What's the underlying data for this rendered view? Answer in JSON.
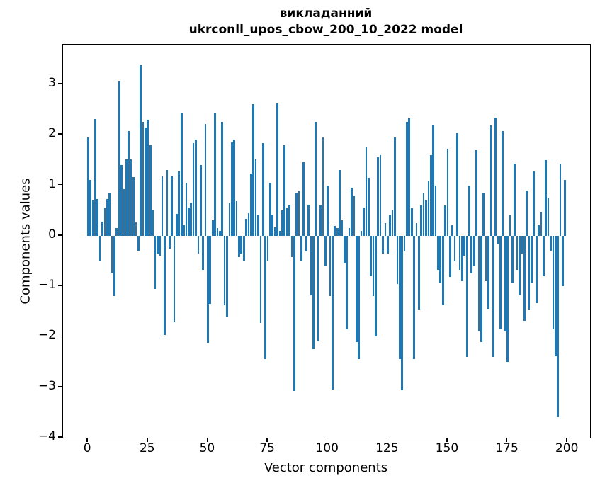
{
  "title_line1": "викладанний",
  "title_line2": "ukrconll_upos_cbow_200_10_2022 model",
  "chart_data": {
    "type": "bar",
    "title": "викладанний\nukrconll_upos_cbow_200_10_2022 model",
    "xlabel": "Vector components",
    "ylabel": "Components values",
    "n_components": 200,
    "x_start_index": 0,
    "bar_color": "#1f77b4",
    "grid": false,
    "legend": null,
    "xlim": [
      -10.4,
      209.4
    ],
    "ylim": [
      -4.0,
      3.785
    ],
    "xticks": [
      0,
      25,
      50,
      75,
      100,
      125,
      150,
      175,
      200
    ],
    "yticks": [
      -4,
      -3,
      -2,
      -1,
      0,
      1,
      2,
      3
    ],
    "values": [
      1.95,
      1.1,
      0.7,
      2.31,
      0.73,
      -0.5,
      0.28,
      0.56,
      0.73,
      0.86,
      -0.75,
      -1.2,
      0.15,
      3.05,
      1.4,
      0.93,
      1.51,
      2.08,
      1.51,
      1.16,
      0.26,
      -0.3,
      3.38,
      2.25,
      2.14,
      2.3,
      1.79,
      0.51,
      -1.06,
      -0.35,
      -0.4,
      1.17,
      -1.96,
      1.3,
      -0.25,
      1.17,
      -1.72,
      0.43,
      1.27,
      2.42,
      0.21,
      1.05,
      0.56,
      0.65,
      1.84,
      1.9,
      -0.35,
      1.4,
      -0.68,
      2.21,
      -2.12,
      -1.35,
      0.3,
      2.42,
      0.15,
      0.1,
      2.26,
      -1.38,
      -1.62,
      0.65,
      1.85,
      1.9,
      0.68,
      -0.43,
      -0.35,
      -0.5,
      0.33,
      0.44,
      1.23,
      2.6,
      1.51,
      0.4,
      -1.73,
      1.83,
      -2.45,
      -0.5,
      1.05,
      0.4,
      0.17,
      2.62,
      0.1,
      0.5,
      1.8,
      0.55,
      0.62,
      -0.43,
      -3.08,
      0.85,
      0.88,
      -0.5,
      1.45,
      -0.31,
      0.62,
      -1.18,
      -2.25,
      2.25,
      -2.09,
      0.6,
      1.95,
      -0.6,
      1.0,
      -1.2,
      -3.05,
      0.2,
      0.15,
      1.3,
      0.3,
      -0.55,
      -1.85,
      0.15,
      0.95,
      0.8,
      -2.1,
      -2.45,
      0.1,
      0.56,
      1.75,
      1.15,
      -0.8,
      -1.2,
      -2.0,
      1.55,
      1.6,
      -0.35,
      0.25,
      -0.35,
      0.4,
      0.52,
      1.95,
      -0.95,
      -2.45,
      -3.06,
      -0.31,
      2.25,
      2.32,
      0.55,
      -2.45,
      0.25,
      -1.46,
      0.6,
      0.85,
      0.7,
      1.08,
      1.6,
      2.2,
      1.0,
      -0.67,
      -0.94,
      -1.38,
      0.6,
      1.72,
      -0.82,
      0.21,
      -0.51,
      2.03,
      -0.67,
      -0.9,
      -0.4,
      -2.4,
      1.0,
      -0.75,
      -0.6,
      1.7,
      -1.9,
      -2.1,
      0.85,
      -0.9,
      -1.45,
      2.19,
      -2.4,
      2.34,
      -0.15,
      -1.85,
      2.07,
      -1.9,
      -2.5,
      0.4,
      -0.94,
      1.43,
      -0.67,
      -1.18,
      -0.35,
      -1.69,
      0.9,
      -1.46,
      -0.94,
      1.28,
      -1.34,
      0.21,
      0.48,
      -0.8,
      1.5,
      0.75,
      -0.3,
      -1.85,
      -2.39,
      -3.6,
      1.43,
      -1.0,
      1.1
    ]
  }
}
